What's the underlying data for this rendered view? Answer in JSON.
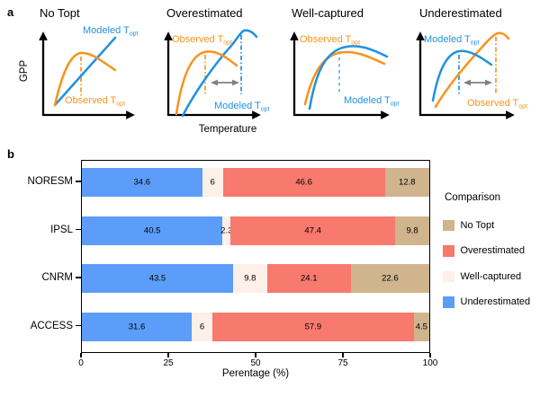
{
  "figure": {
    "panel_a_label": "a",
    "panel_b_label": "b"
  },
  "panel_a": {
    "y_axis_label": "GPP",
    "x_axis_label": "Temperature",
    "modeled_label": "Modeled T",
    "observed_label": "Observed T",
    "subscript": "opt",
    "colors": {
      "modeled_blue": "#2191E0",
      "observed_orange": "#F7941E",
      "offset_arrow_gray": "#808080"
    },
    "plots": [
      {
        "title": "No Topt"
      },
      {
        "title": "Overestimated"
      },
      {
        "title": "Well-captured"
      },
      {
        "title": "Underestimated"
      }
    ]
  },
  "panel_b": {
    "xlabel": "Perentage (%)",
    "legend": {
      "title": "Comparison",
      "items": [
        {
          "label": "No Topt",
          "color": "#D0B48E"
        },
        {
          "label": "Overestimated",
          "color": "#F8796E"
        },
        {
          "label": "Well-captured",
          "color": "#FDF0E8"
        },
        {
          "label": "Underestimated",
          "color": "#5C9DFA"
        }
      ]
    }
  },
  "chart_data": {
    "type": "bar",
    "orientation": "horizontal",
    "stacked": true,
    "title": "",
    "xlabel": "Perentage (%)",
    "ylabel": "",
    "xlim": [
      0,
      100
    ],
    "x_ticks": [
      0,
      25,
      50,
      75,
      100
    ],
    "grid": false,
    "legend_title": "Comparison",
    "legend_position": "right",
    "categories": [
      "NORESM",
      "IPSL",
      "CNRM",
      "ACCESS"
    ],
    "series": [
      {
        "name": "Underestimated",
        "color": "#5C9DFA",
        "values": [
          34.6,
          40.5,
          43.5,
          31.6
        ]
      },
      {
        "name": "Well-captured",
        "color": "#FDF0E8",
        "values": [
          6,
          2.3,
          9.8,
          6
        ]
      },
      {
        "name": "Overestimated",
        "color": "#F8796E",
        "values": [
          46.6,
          47.4,
          24.1,
          57.9
        ]
      },
      {
        "name": "No Topt",
        "color": "#D0B48E",
        "values": [
          12.8,
          9.8,
          22.6,
          4.5
        ]
      }
    ]
  }
}
